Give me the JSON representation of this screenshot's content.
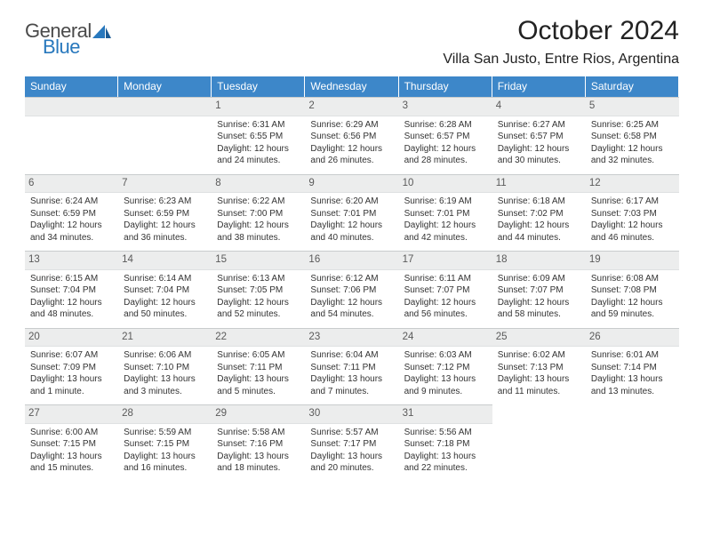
{
  "brand": {
    "general": "General",
    "blue": "Blue",
    "logo_color": "#2878bd"
  },
  "title": "October 2024",
  "location": "Villa San Justo, Entre Rios, Argentina",
  "colors": {
    "header_bg": "#3d87c9",
    "header_text": "#ffffff",
    "daynum_bg": "#eceded",
    "daynum_text": "#5a5a5a",
    "body_text": "#333333",
    "page_bg": "#ffffff"
  },
  "day_headers": [
    "Sunday",
    "Monday",
    "Tuesday",
    "Wednesday",
    "Thursday",
    "Friday",
    "Saturday"
  ],
  "leading_blanks": 2,
  "days": [
    {
      "n": "1",
      "sunrise": "6:31 AM",
      "sunset": "6:55 PM",
      "dl1": "Daylight: 12 hours",
      "dl2": "and 24 minutes."
    },
    {
      "n": "2",
      "sunrise": "6:29 AM",
      "sunset": "6:56 PM",
      "dl1": "Daylight: 12 hours",
      "dl2": "and 26 minutes."
    },
    {
      "n": "3",
      "sunrise": "6:28 AM",
      "sunset": "6:57 PM",
      "dl1": "Daylight: 12 hours",
      "dl2": "and 28 minutes."
    },
    {
      "n": "4",
      "sunrise": "6:27 AM",
      "sunset": "6:57 PM",
      "dl1": "Daylight: 12 hours",
      "dl2": "and 30 minutes."
    },
    {
      "n": "5",
      "sunrise": "6:25 AM",
      "sunset": "6:58 PM",
      "dl1": "Daylight: 12 hours",
      "dl2": "and 32 minutes."
    },
    {
      "n": "6",
      "sunrise": "6:24 AM",
      "sunset": "6:59 PM",
      "dl1": "Daylight: 12 hours",
      "dl2": "and 34 minutes."
    },
    {
      "n": "7",
      "sunrise": "6:23 AM",
      "sunset": "6:59 PM",
      "dl1": "Daylight: 12 hours",
      "dl2": "and 36 minutes."
    },
    {
      "n": "8",
      "sunrise": "6:22 AM",
      "sunset": "7:00 PM",
      "dl1": "Daylight: 12 hours",
      "dl2": "and 38 minutes."
    },
    {
      "n": "9",
      "sunrise": "6:20 AM",
      "sunset": "7:01 PM",
      "dl1": "Daylight: 12 hours",
      "dl2": "and 40 minutes."
    },
    {
      "n": "10",
      "sunrise": "6:19 AM",
      "sunset": "7:01 PM",
      "dl1": "Daylight: 12 hours",
      "dl2": "and 42 minutes."
    },
    {
      "n": "11",
      "sunrise": "6:18 AM",
      "sunset": "7:02 PM",
      "dl1": "Daylight: 12 hours",
      "dl2": "and 44 minutes."
    },
    {
      "n": "12",
      "sunrise": "6:17 AM",
      "sunset": "7:03 PM",
      "dl1": "Daylight: 12 hours",
      "dl2": "and 46 minutes."
    },
    {
      "n": "13",
      "sunrise": "6:15 AM",
      "sunset": "7:04 PM",
      "dl1": "Daylight: 12 hours",
      "dl2": "and 48 minutes."
    },
    {
      "n": "14",
      "sunrise": "6:14 AM",
      "sunset": "7:04 PM",
      "dl1": "Daylight: 12 hours",
      "dl2": "and 50 minutes."
    },
    {
      "n": "15",
      "sunrise": "6:13 AM",
      "sunset": "7:05 PM",
      "dl1": "Daylight: 12 hours",
      "dl2": "and 52 minutes."
    },
    {
      "n": "16",
      "sunrise": "6:12 AM",
      "sunset": "7:06 PM",
      "dl1": "Daylight: 12 hours",
      "dl2": "and 54 minutes."
    },
    {
      "n": "17",
      "sunrise": "6:11 AM",
      "sunset": "7:07 PM",
      "dl1": "Daylight: 12 hours",
      "dl2": "and 56 minutes."
    },
    {
      "n": "18",
      "sunrise": "6:09 AM",
      "sunset": "7:07 PM",
      "dl1": "Daylight: 12 hours",
      "dl2": "and 58 minutes."
    },
    {
      "n": "19",
      "sunrise": "6:08 AM",
      "sunset": "7:08 PM",
      "dl1": "Daylight: 12 hours",
      "dl2": "and 59 minutes."
    },
    {
      "n": "20",
      "sunrise": "6:07 AM",
      "sunset": "7:09 PM",
      "dl1": "Daylight: 13 hours",
      "dl2": "and 1 minute."
    },
    {
      "n": "21",
      "sunrise": "6:06 AM",
      "sunset": "7:10 PM",
      "dl1": "Daylight: 13 hours",
      "dl2": "and 3 minutes."
    },
    {
      "n": "22",
      "sunrise": "6:05 AM",
      "sunset": "7:11 PM",
      "dl1": "Daylight: 13 hours",
      "dl2": "and 5 minutes."
    },
    {
      "n": "23",
      "sunrise": "6:04 AM",
      "sunset": "7:11 PM",
      "dl1": "Daylight: 13 hours",
      "dl2": "and 7 minutes."
    },
    {
      "n": "24",
      "sunrise": "6:03 AM",
      "sunset": "7:12 PM",
      "dl1": "Daylight: 13 hours",
      "dl2": "and 9 minutes."
    },
    {
      "n": "25",
      "sunrise": "6:02 AM",
      "sunset": "7:13 PM",
      "dl1": "Daylight: 13 hours",
      "dl2": "and 11 minutes."
    },
    {
      "n": "26",
      "sunrise": "6:01 AM",
      "sunset": "7:14 PM",
      "dl1": "Daylight: 13 hours",
      "dl2": "and 13 minutes."
    },
    {
      "n": "27",
      "sunrise": "6:00 AM",
      "sunset": "7:15 PM",
      "dl1": "Daylight: 13 hours",
      "dl2": "and 15 minutes."
    },
    {
      "n": "28",
      "sunrise": "5:59 AM",
      "sunset": "7:15 PM",
      "dl1": "Daylight: 13 hours",
      "dl2": "and 16 minutes."
    },
    {
      "n": "29",
      "sunrise": "5:58 AM",
      "sunset": "7:16 PM",
      "dl1": "Daylight: 13 hours",
      "dl2": "and 18 minutes."
    },
    {
      "n": "30",
      "sunrise": "5:57 AM",
      "sunset": "7:17 PM",
      "dl1": "Daylight: 13 hours",
      "dl2": "and 20 minutes."
    },
    {
      "n": "31",
      "sunrise": "5:56 AM",
      "sunset": "7:18 PM",
      "dl1": "Daylight: 13 hours",
      "dl2": "and 22 minutes."
    }
  ]
}
